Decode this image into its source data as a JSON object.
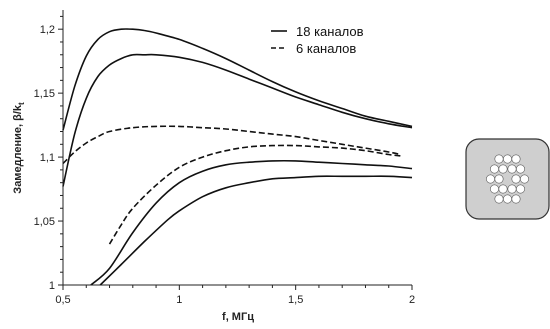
{
  "chart_data": {
    "type": "line",
    "title": "",
    "xlabel": "f, МГц",
    "ylabel": "Замедление, β/k",
    "ylabel_subscript": "t",
    "xlim": [
      0.5,
      2.0
    ],
    "ylim": [
      1.0,
      1.215
    ],
    "x_ticks": [
      0.5,
      1.0,
      1.5,
      2.0
    ],
    "x_tick_labels": [
      "0,5",
      "1",
      "1,5",
      "2"
    ],
    "y_ticks": [
      1.0,
      1.05,
      1.1,
      1.15,
      1.2
    ],
    "y_tick_labels": [
      "1",
      "1,05",
      "1,1",
      "1,15",
      "1,2"
    ],
    "grid": false,
    "legend_position": "top-right",
    "legend": [
      {
        "label": "18 каналов",
        "style": "solid"
      },
      {
        "label": "6 каналов",
        "style": "dashed"
      }
    ],
    "series": [
      {
        "group": "18 каналов",
        "style": "solid",
        "x": [
          0.5,
          0.55,
          0.6,
          0.65,
          0.7,
          0.75,
          0.8,
          0.85,
          0.9,
          1.0,
          1.1,
          1.2,
          1.3,
          1.4,
          1.5,
          1.6,
          1.7,
          1.8,
          1.9,
          2.0
        ],
        "y": [
          1.121,
          1.155,
          1.179,
          1.192,
          1.198,
          1.2,
          1.2,
          1.199,
          1.197,
          1.192,
          1.185,
          1.177,
          1.168,
          1.159,
          1.151,
          1.144,
          1.138,
          1.132,
          1.128,
          1.124
        ]
      },
      {
        "group": "18 каналов",
        "style": "solid",
        "x": [
          0.5,
          0.55,
          0.6,
          0.65,
          0.7,
          0.75,
          0.8,
          0.85,
          0.9,
          1.0,
          1.1,
          1.2,
          1.3,
          1.4,
          1.5,
          1.6,
          1.7,
          1.8,
          1.9,
          2.0
        ],
        "y": [
          1.077,
          1.118,
          1.146,
          1.163,
          1.172,
          1.177,
          1.18,
          1.18,
          1.18,
          1.178,
          1.174,
          1.168,
          1.161,
          1.154,
          1.147,
          1.141,
          1.135,
          1.13,
          1.126,
          1.123
        ]
      },
      {
        "group": "18 каналов",
        "style": "solid",
        "x": [
          0.62,
          0.7,
          0.8,
          0.9,
          1.0,
          1.1,
          1.2,
          1.3,
          1.4,
          1.5,
          1.6,
          1.7,
          1.8,
          1.9,
          2.0
        ],
        "y": [
          1.0,
          1.013,
          1.041,
          1.064,
          1.08,
          1.089,
          1.094,
          1.096,
          1.097,
          1.097,
          1.096,
          1.095,
          1.094,
          1.093,
          1.091
        ]
      },
      {
        "group": "18 каналов",
        "style": "solid",
        "x": [
          0.66,
          0.75,
          0.85,
          0.95,
          1.0,
          1.1,
          1.2,
          1.3,
          1.4,
          1.5,
          1.6,
          1.7,
          1.8,
          1.9,
          2.0
        ],
        "y": [
          1.0,
          1.016,
          1.034,
          1.051,
          1.058,
          1.069,
          1.076,
          1.08,
          1.083,
          1.084,
          1.085,
          1.085,
          1.085,
          1.085,
          1.084
        ]
      },
      {
        "group": "6 каналов",
        "style": "dashed",
        "x": [
          0.5,
          0.55,
          0.6,
          0.65,
          0.7,
          0.8,
          0.9,
          1.0,
          1.1,
          1.2,
          1.3,
          1.4,
          1.5,
          1.6,
          1.7,
          1.8,
          1.9,
          1.95
        ],
        "y": [
          1.095,
          1.104,
          1.111,
          1.116,
          1.12,
          1.123,
          1.124,
          1.124,
          1.123,
          1.122,
          1.12,
          1.118,
          1.116,
          1.113,
          1.11,
          1.107,
          1.104,
          1.102
        ]
      },
      {
        "group": "6 каналов",
        "style": "dashed",
        "x": [
          0.7,
          0.75,
          0.8,
          0.9,
          1.0,
          1.1,
          1.2,
          1.3,
          1.4,
          1.5,
          1.6,
          1.7,
          1.8,
          1.9,
          1.95
        ],
        "y": [
          1.032,
          1.047,
          1.06,
          1.078,
          1.092,
          1.1,
          1.105,
          1.108,
          1.109,
          1.109,
          1.108,
          1.107,
          1.105,
          1.102,
          1.101
        ]
      }
    ],
    "inset": {
      "shape": "rounded-square",
      "fill": "#cfcfcf",
      "hole_count": 18,
      "hole_fill": "#ffffff"
    }
  }
}
